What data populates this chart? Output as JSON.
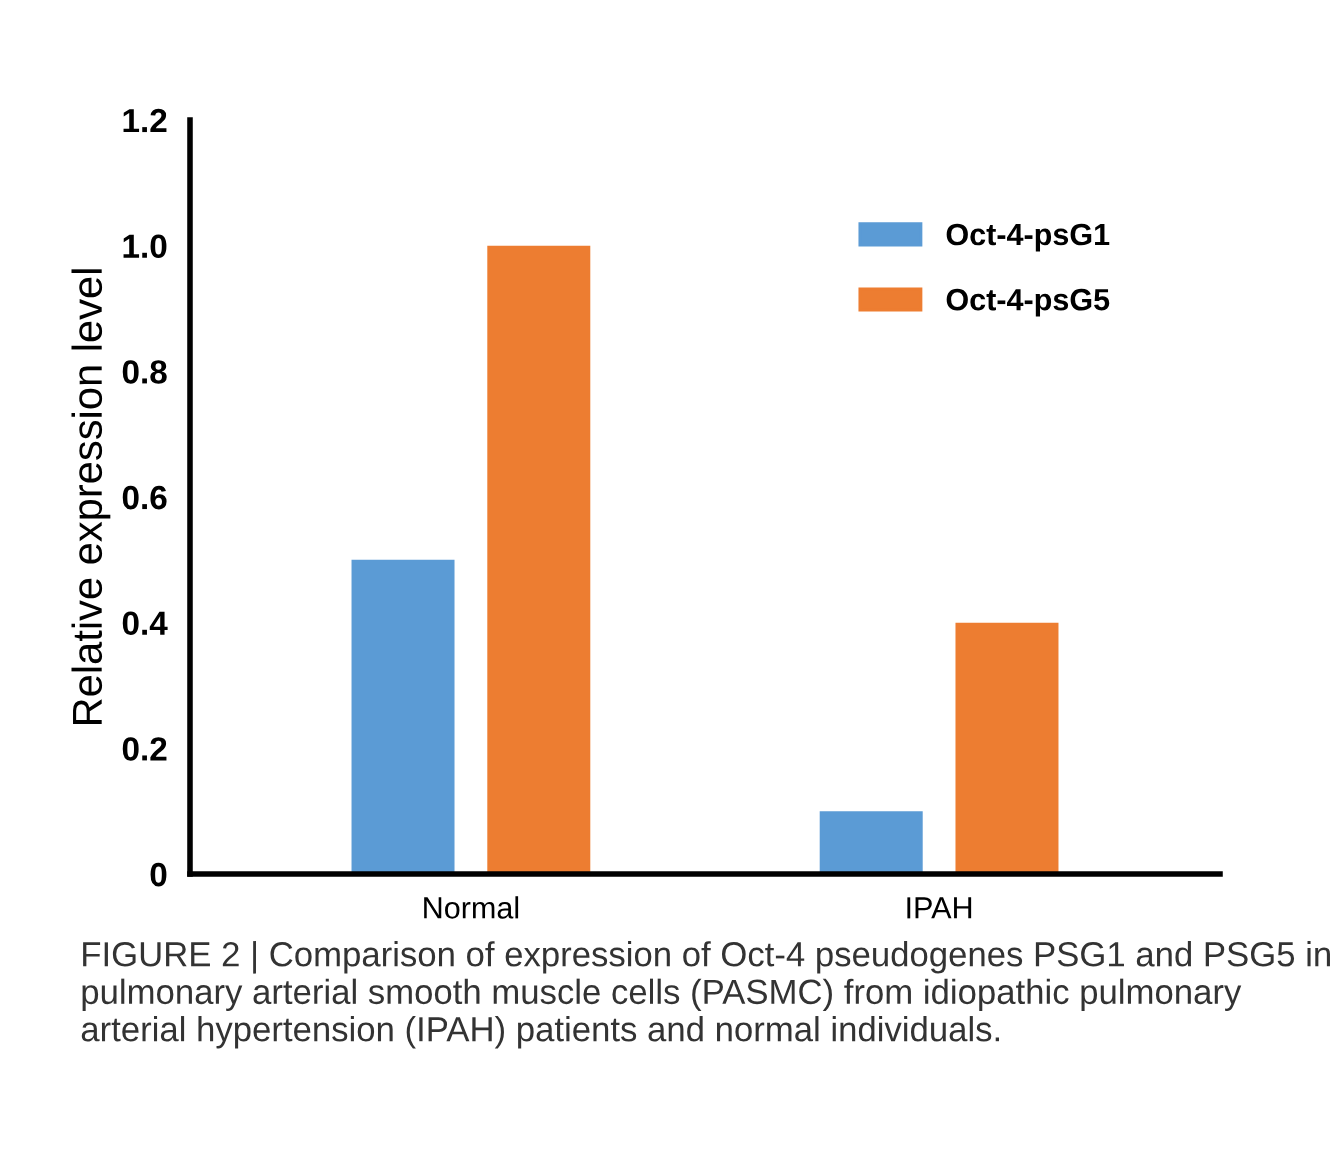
{
  "chart_data": {
    "type": "bar",
    "ylabel": "Relative expression level",
    "categories": [
      "Normal",
      "IPAH"
    ],
    "series": [
      {
        "name": "Oct-4-psG1",
        "color": "#5b9bd5",
        "values": [
          0.5,
          0.1
        ]
      },
      {
        "name": "Oct-4-psG5",
        "color": "#ed7d31",
        "values": [
          1.0,
          0.4
        ]
      }
    ],
    "ylim": [
      0,
      1.2
    ],
    "yticks": [
      {
        "value": 0,
        "label": "0"
      },
      0.2,
      0.4,
      0.6,
      0.8,
      {
        "value": 1.0,
        "label": "1.0"
      },
      1.2
    ],
    "grid": false,
    "legend": "top right",
    "annotations": [
      "FIGURE 2 | Comparison of expression of Oct-4 pseudogenes PSG1 and PSG5 in pulmonary arterial smooth muscle cells (PASMC) from idiopathic pulmonary arterial hypertension (IPAH) patients and normal individuals."
    ]
  }
}
